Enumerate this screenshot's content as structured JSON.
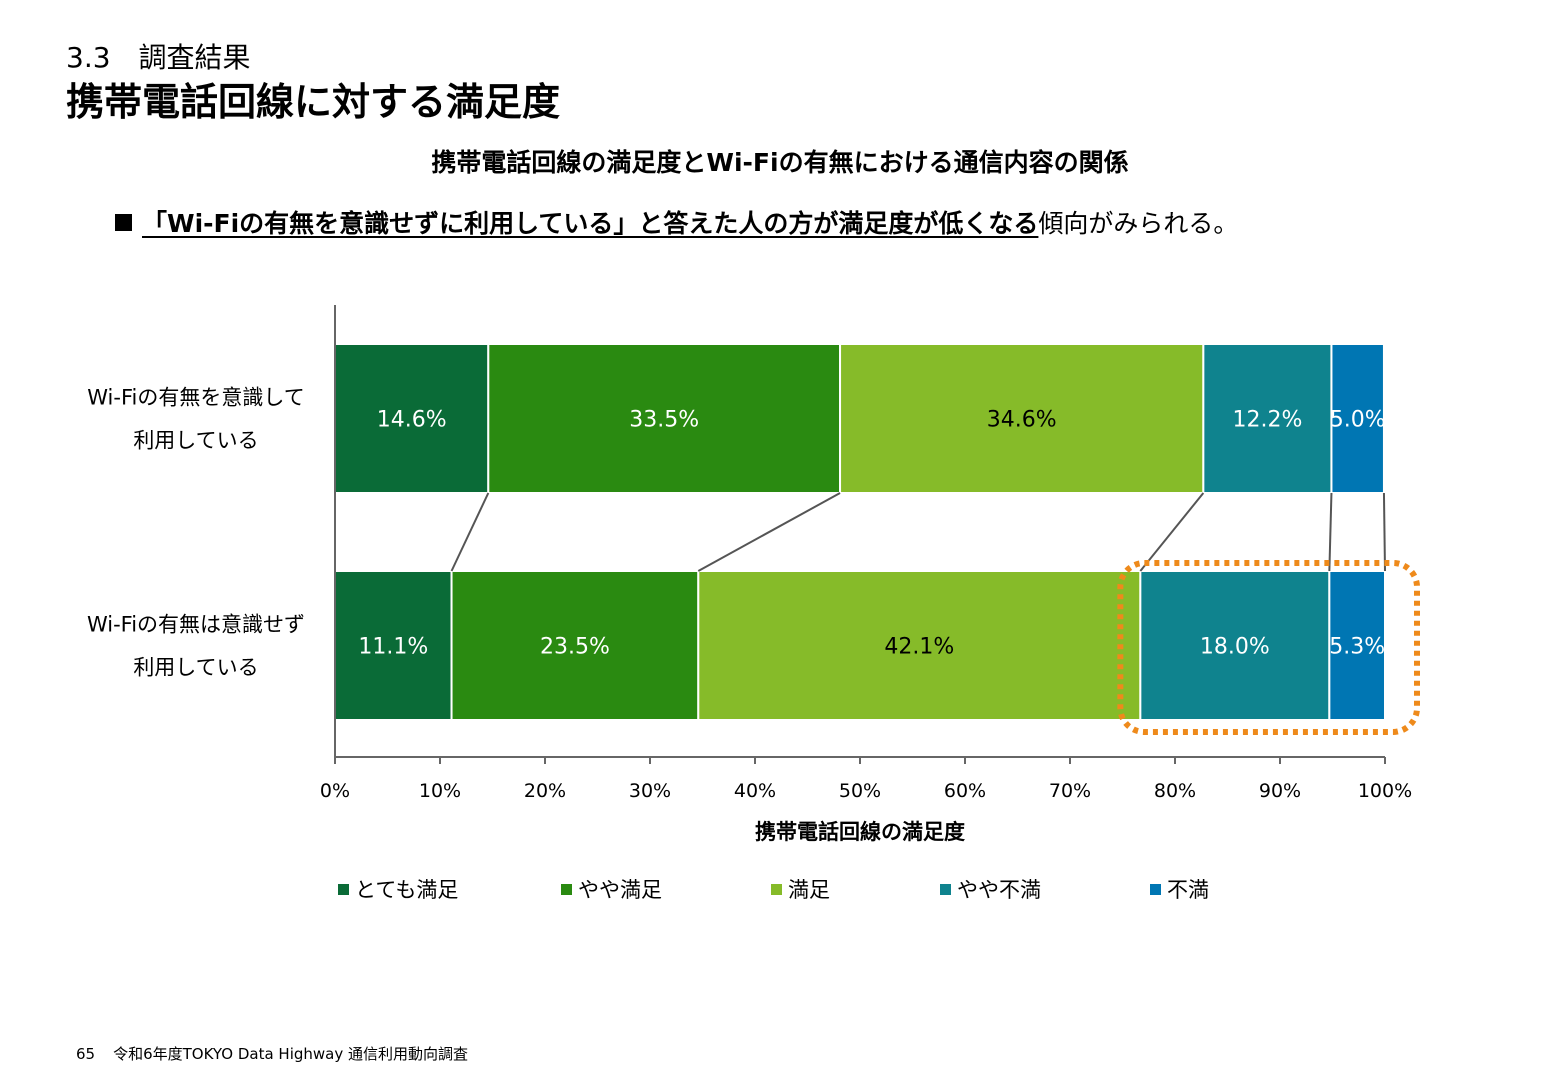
{
  "header": {
    "section": "3.3　調査結果",
    "title": "携帯電話回線に対する満足度"
  },
  "finding": {
    "highlight": "「Wi-Fiの有無を意識せずに利用している」と答えた人の方が満足度が低くなる",
    "rest": "傾向がみられる。"
  },
  "chart_data": {
    "type": "bar",
    "orientation": "horizontal",
    "stacked": "100%",
    "title": "携帯電話回線の満足度とWi-Fiの有無における通信内容の関係",
    "xlabel": "携帯電話回線の満足度",
    "ylabel": "",
    "xlim": [
      0,
      100
    ],
    "xticks": [
      "0%",
      "10%",
      "20%",
      "30%",
      "40%",
      "50%",
      "60%",
      "70%",
      "80%",
      "90%",
      "100%"
    ],
    "categories": [
      [
        "Wi-Fiの有無を意識して",
        "利用している"
      ],
      [
        "Wi-Fiの有無は意識せず",
        "利用している"
      ]
    ],
    "series": [
      {
        "name": "とても満足",
        "color": "#0a6b37",
        "label_color": "#ffffff",
        "values": [
          14.6,
          11.1
        ],
        "labels": [
          "14.6%",
          "11.1%"
        ]
      },
      {
        "name": "やや満足",
        "color": "#2a8a11",
        "label_color": "#ffffff",
        "values": [
          33.5,
          23.5
        ],
        "labels": [
          "33.5%",
          "23.5%"
        ]
      },
      {
        "name": "満足",
        "color": "#86bb29",
        "label_color": "#000000",
        "values": [
          34.6,
          42.1
        ],
        "labels": [
          "34.6%",
          "42.1%"
        ]
      },
      {
        "name": "やや不満",
        "color": "#0f838e",
        "label_color": "#ffffff",
        "values": [
          12.2,
          18.0
        ],
        "labels": [
          "12.2%",
          "18.0%"
        ]
      },
      {
        "name": "不満",
        "color": "#0076b3",
        "label_color": "#ffffff",
        "values": [
          5.0,
          5.3
        ],
        "labels": [
          "5.0%",
          "5.3%"
        ]
      }
    ],
    "series_lines": true,
    "highlight": {
      "series": [
        "やや不満",
        "不満"
      ],
      "category_index": 1,
      "color": "#ee8a1b",
      "style": "dotted"
    },
    "legend_position": "bottom",
    "grid": false
  },
  "footer": {
    "page": "65",
    "source": "令和6年度TOKYO Data Highway 通信利用動向調査"
  }
}
